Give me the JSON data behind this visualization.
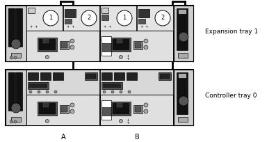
{
  "bg_color": "#ffffff",
  "tray_fill": "#cccccc",
  "tray_border": "#000000",
  "dark_fill": "#111111",
  "label_a": "A",
  "label_b": "B",
  "label_exp": "Expansion tray 1",
  "label_ctrl": "Controller tray 0",
  "font_size_label": 6.5,
  "font_size_ab": 7
}
